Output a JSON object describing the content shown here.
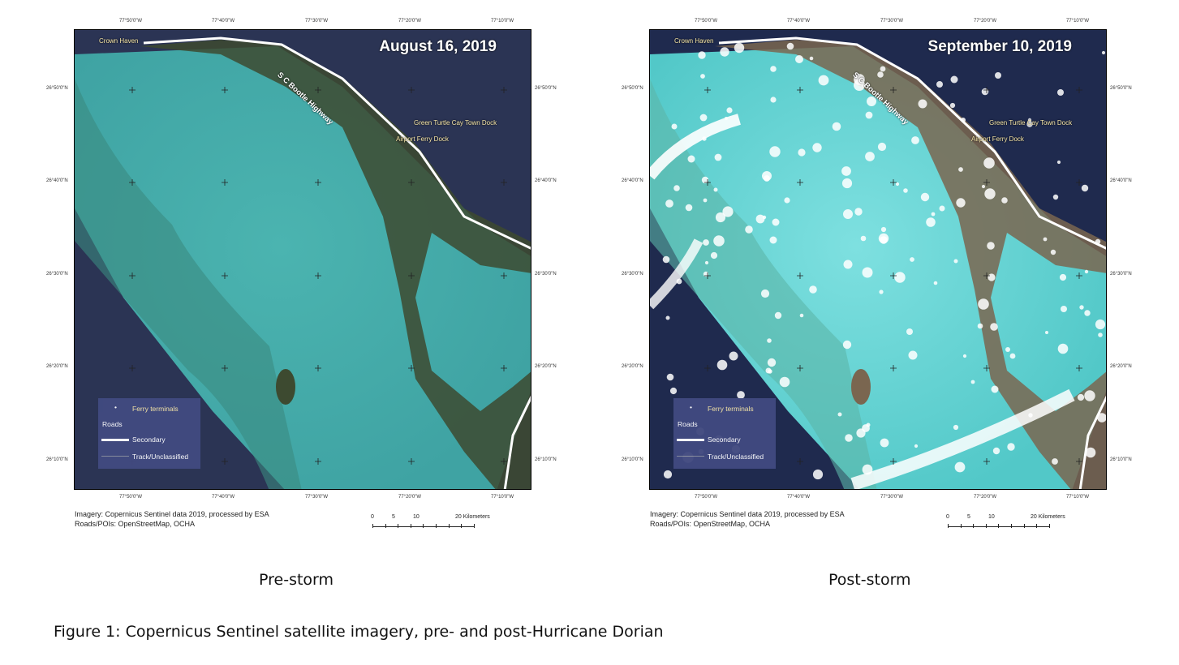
{
  "maps": [
    {
      "date": "August 16, 2019",
      "subtitle": "Pre-storm",
      "state": "pre",
      "colors": {
        "ocean": "#2b3454",
        "bank": "#3fa3a3",
        "land": "#3d4a30"
      }
    },
    {
      "date": "September 10, 2019",
      "subtitle": "Post-storm",
      "state": "post",
      "colors": {
        "ocean": "#1f2a4e",
        "bank": "#52c8c8",
        "land": "#7a6650"
      }
    }
  ],
  "longitude_ticks": [
    "77°50'0\"W",
    "77°40'0\"W",
    "77°30'0\"W",
    "77°20'0\"W",
    "77°10'0\"W"
  ],
  "latitude_ticks": [
    "26°50'0\"N",
    "26°40'0\"N",
    "26°30'0\"N",
    "26°20'0\"N",
    "26°10'0\"N"
  ],
  "places": {
    "crown_haven": "Crown Haven",
    "highway": "S C Bootle Highway",
    "green_turtle": "Green Turtle Cay Town Dock",
    "airport_ferry": "Airport Ferry Dock"
  },
  "legend": {
    "ferry": "Ferry terminals",
    "roads": "Roads",
    "secondary": "Secondary",
    "track": "Track/Unclassified"
  },
  "credits": {
    "imagery": "Imagery: Copernicus Sentinel data 2019, processed by ESA",
    "roads": "Roads/POIs: OpenStreetMap, OCHA"
  },
  "scale": {
    "labels": [
      "0",
      "5",
      "10",
      "20 Kilometers"
    ]
  },
  "caption": "Figure 1: Copernicus Sentinel satellite imagery, pre- and post-Hurricane Dorian"
}
